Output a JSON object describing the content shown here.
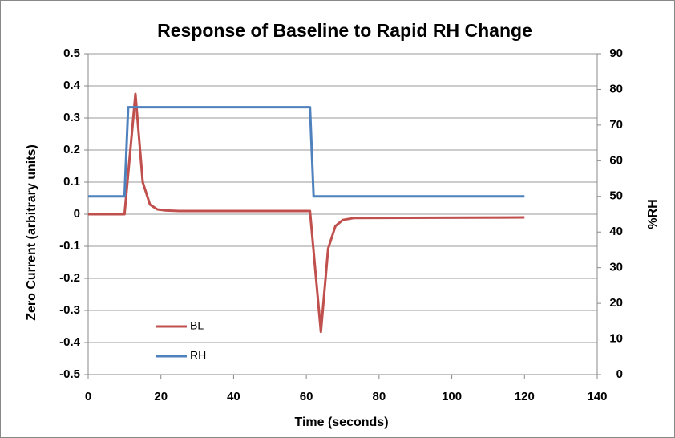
{
  "chart_data": {
    "type": "line",
    "title": "Response of Baseline to Rapid RH Change",
    "xlabel": "Time (seconds)",
    "ylabel": "Zero Current (arbitrary units)",
    "y2label": "%RH",
    "xlim": [
      0,
      140
    ],
    "xticks": [
      0,
      20,
      40,
      60,
      80,
      100,
      120,
      140
    ],
    "ylim": [
      -0.5,
      0.5
    ],
    "yticks": [
      0.5,
      0.4,
      0.3,
      0.2,
      0.1,
      0,
      -0.1,
      -0.2,
      -0.3,
      -0.4,
      -0.5
    ],
    "y2lim": [
      0,
      90
    ],
    "y2ticks": [
      90,
      80,
      70,
      60,
      50,
      40,
      30,
      20,
      10,
      0
    ],
    "grid": true,
    "legend": "lower-left",
    "series": [
      {
        "name": "BL",
        "color": "#c0504d",
        "x": [
          0,
          10,
          13,
          15,
          17,
          19,
          21,
          25,
          61,
          64,
          66,
          68,
          70,
          73,
          120
        ],
        "values": [
          0,
          0,
          0.375,
          0.1,
          0.03,
          0.015,
          0.012,
          0.01,
          0.01,
          -0.367,
          -0.107,
          -0.037,
          -0.018,
          -0.012,
          -0.01
        ]
      },
      {
        "name": "RH",
        "color": "#4f81bd",
        "axis": "y2",
        "x": [
          0,
          10,
          11,
          61,
          62,
          120
        ],
        "values": [
          50,
          50,
          75,
          75,
          50,
          50
        ]
      }
    ]
  }
}
